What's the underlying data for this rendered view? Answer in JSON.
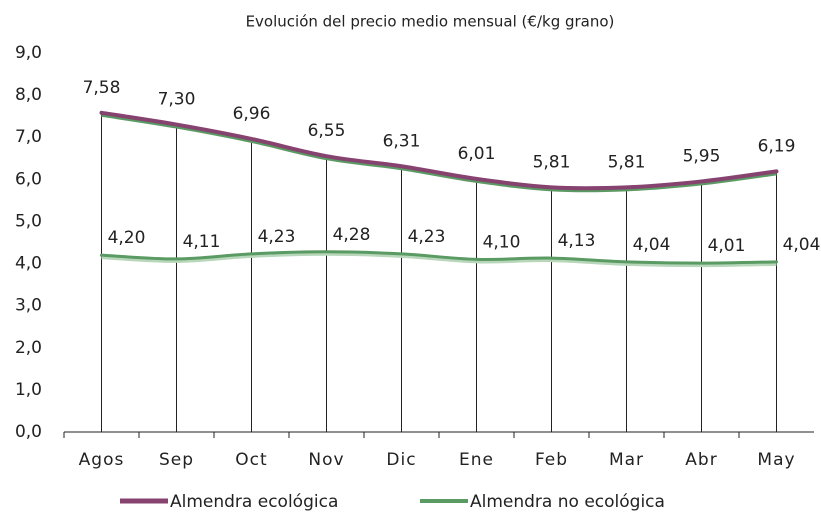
{
  "chart_data": {
    "type": "line",
    "title": "Evolución del precio medio mensual (€/kg grano)",
    "categories": [
      "Agos",
      "Sep",
      "Oct",
      "Nov",
      "Dic",
      "Ene",
      "Feb",
      "Mar",
      "Abr",
      "May"
    ],
    "series": [
      {
        "name": "Almendra ecológica",
        "color": "#86436f",
        "values": [
          7.58,
          7.3,
          6.96,
          6.55,
          6.31,
          6.01,
          5.81,
          5.81,
          5.95,
          6.19
        ],
        "value_labels": [
          "7,58",
          "7,30",
          "6,96",
          "6,55",
          "6,31",
          "6,01",
          "5,81",
          "5,81",
          "5,95",
          "6,19"
        ]
      },
      {
        "name": "Almendra no ecológica",
        "color": "#5a9a63",
        "values": [
          4.2,
          4.11,
          4.23,
          4.28,
          4.23,
          4.1,
          4.13,
          4.04,
          4.01,
          4.04
        ],
        "value_labels": [
          "4,20",
          "4,11",
          "4,23",
          "4,28",
          "4,23",
          "4,10",
          "4,13",
          "4,04",
          "4,01",
          "4,04"
        ]
      }
    ],
    "ylim": [
      0,
      9
    ],
    "yticks": [
      {
        "value": 0,
        "label": "0,0"
      },
      {
        "value": 1,
        "label": "1,0"
      },
      {
        "value": 2,
        "label": "2,0"
      },
      {
        "value": 3,
        "label": "3,0"
      },
      {
        "value": 4,
        "label": "4,0"
      },
      {
        "value": 5,
        "label": "5,0"
      },
      {
        "value": 6,
        "label": "6,0"
      },
      {
        "value": 7,
        "label": "7,0"
      },
      {
        "value": 8,
        "label": "8,0"
      },
      {
        "value": 9,
        "label": "9,0"
      }
    ],
    "grid": false,
    "legend": "bottom"
  }
}
